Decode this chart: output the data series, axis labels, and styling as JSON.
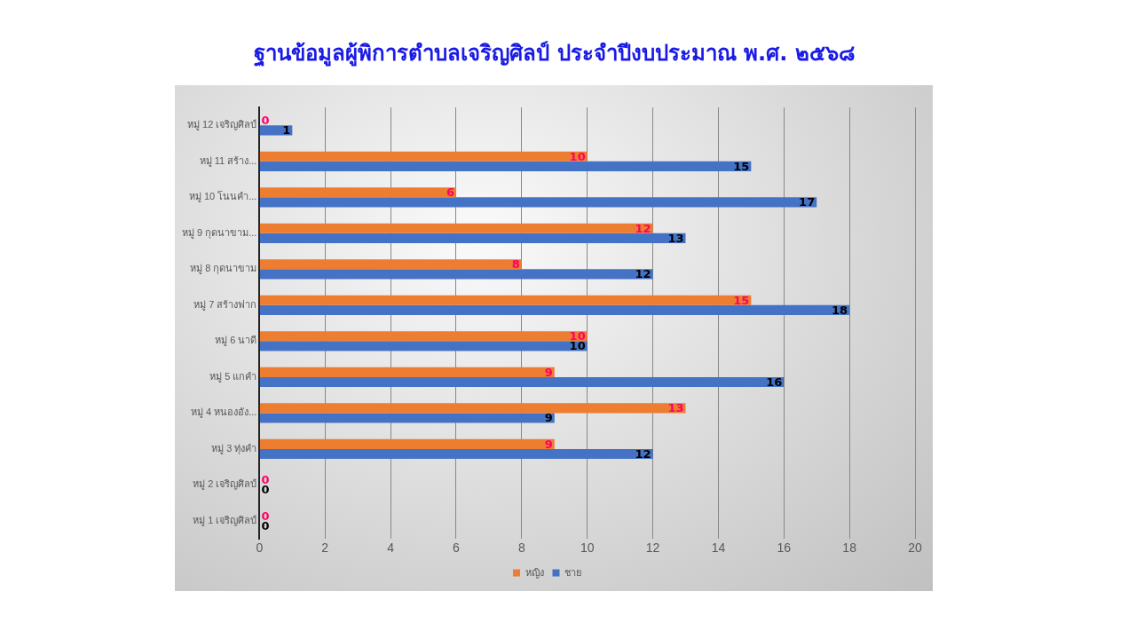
{
  "chart_data": {
    "type": "bar",
    "orientation": "horizontal",
    "title": "ฐานข้อมูลผู้พิการตำบลเจริญศิลป์ ประจำปีงบประมาณ พ.ศ. ๒๕๖๘",
    "categories": [
      "หมู่ 12 เจริญศิลป์",
      "หมู่ 11 สร้าง...",
      "หมู่ 10 โนนคำ...",
      "หมู่ 9 กุดนาขาม...",
      "หมู่ 8 กุดนาขาม",
      "หมู่ 7 สร้างฟาก",
      "หมู่ 6 นาดี",
      "หมู่ 5 แกคำ",
      "หมู่ 4 หนองอัง...",
      "หมู่ 3 ทุ่งคำ",
      "หมู่ 2 เจริญศิลป์",
      "หมู่ 1 เจริญศิลป์"
    ],
    "series": [
      {
        "name": "หญิง",
        "color": "#ed7d31",
        "values": [
          0,
          10,
          6,
          12,
          8,
          15,
          10,
          9,
          13,
          9,
          0,
          0
        ]
      },
      {
        "name": "ชาย",
        "color": "#4472c4",
        "values": [
          1,
          15,
          17,
          13,
          12,
          18,
          10,
          16,
          9,
          12,
          0,
          0
        ]
      }
    ],
    "xlim": [
      0,
      20
    ],
    "xticks": [
      0,
      2,
      4,
      6,
      8,
      10,
      12,
      14,
      16,
      18,
      20
    ],
    "grid": "x",
    "legend": "bottom",
    "data_labels": true
  }
}
